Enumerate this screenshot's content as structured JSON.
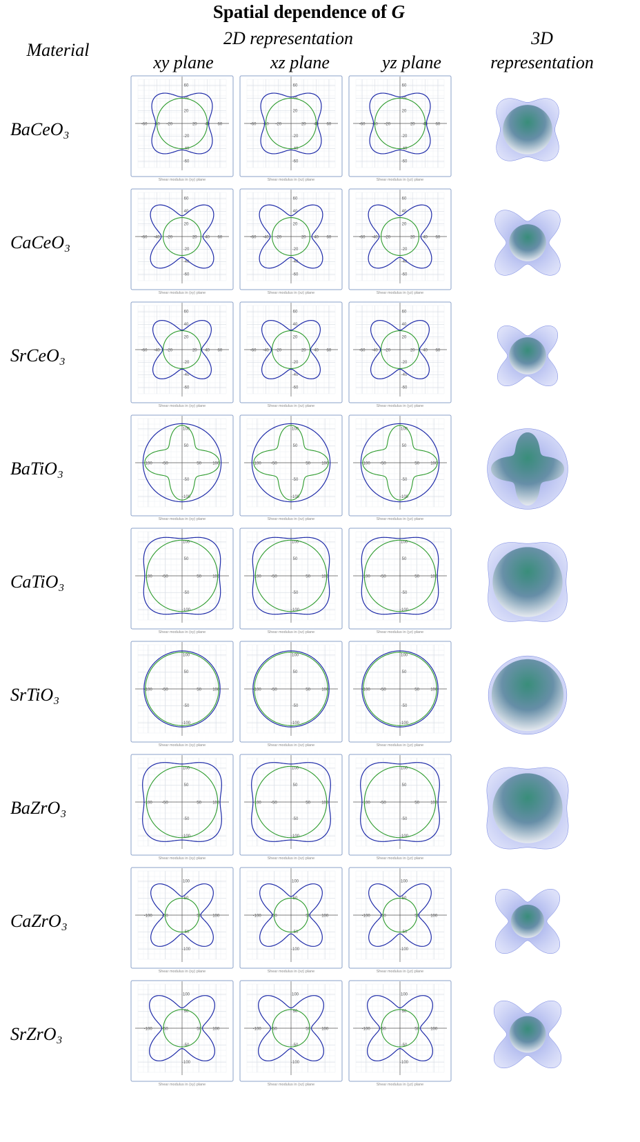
{
  "header": {
    "title": "Spatial dependence of",
    "title_symbol": "G",
    "subtitle_2d": "2D representation",
    "subtitle_3d_1": "3D",
    "subtitle_3d_2": "representation",
    "material": "Material",
    "planes": [
      "xy plane",
      "xz plane",
      "yz plane"
    ]
  },
  "captions": [
    "Shear modulus in (xy) plane",
    "Shear modulus in (xz) plane",
    "Shear modulus in (yz) plane"
  ],
  "rows": [
    {
      "material": "BaCeO₃",
      "limit": 70,
      "ticks": [
        -60,
        -40,
        -20,
        20,
        40,
        60
      ],
      "max_axis": 42,
      "max_diag": 60,
      "min_axis": 40,
      "min_diag": 40
    },
    {
      "material": "CaCeO₃",
      "limit": 70,
      "ticks": [
        -60,
        -40,
        -20,
        20,
        40,
        60
      ],
      "max_axis": 33,
      "max_diag": 65,
      "min_axis": 30,
      "min_diag": 30
    },
    {
      "material": "SrCeO₃",
      "limit": 70,
      "ticks": [
        -60,
        -40,
        -20,
        20,
        40,
        60
      ],
      "max_axis": 31,
      "max_diag": 60,
      "min_axis": 30,
      "min_diag": 30
    },
    {
      "material": "BaTiO₃",
      "limit": 130,
      "ticks": [
        -100,
        -50,
        50,
        100
      ],
      "max_axis": 115,
      "max_diag": 115,
      "min_axis": 110,
      "min_diag": 60
    },
    {
      "material": "CaTiO₃",
      "limit": 130,
      "ticks": [
        -100,
        -50,
        50,
        100
      ],
      "max_axis": 110,
      "max_diag": 135,
      "min_axis": 105,
      "min_diag": 105
    },
    {
      "material": "SrTiO₃",
      "limit": 130,
      "ticks": [
        -100,
        -50,
        50,
        100
      ],
      "max_axis": 112,
      "max_diag": 112,
      "min_axis": 108,
      "min_diag": 108
    },
    {
      "material": "BaZrO₃",
      "limit": 130,
      "ticks": [
        -100,
        -50,
        50,
        100
      ],
      "max_axis": 112,
      "max_diag": 140,
      "min_axis": 105,
      "min_diag": 105
    },
    {
      "material": "CaZrO₃",
      "limit": 130,
      "ticks": [
        -100,
        -50,
        50,
        100
      ],
      "max_axis": 55,
      "max_diag": 120,
      "min_axis": 50,
      "min_diag": 50
    },
    {
      "material": "SrZrO₃",
      "limit": 130,
      "ticks": [
        -100,
        -50,
        50,
        100
      ],
      "max_axis": 60,
      "max_diag": 125,
      "min_axis": 55,
      "min_diag": 55
    }
  ]
}
